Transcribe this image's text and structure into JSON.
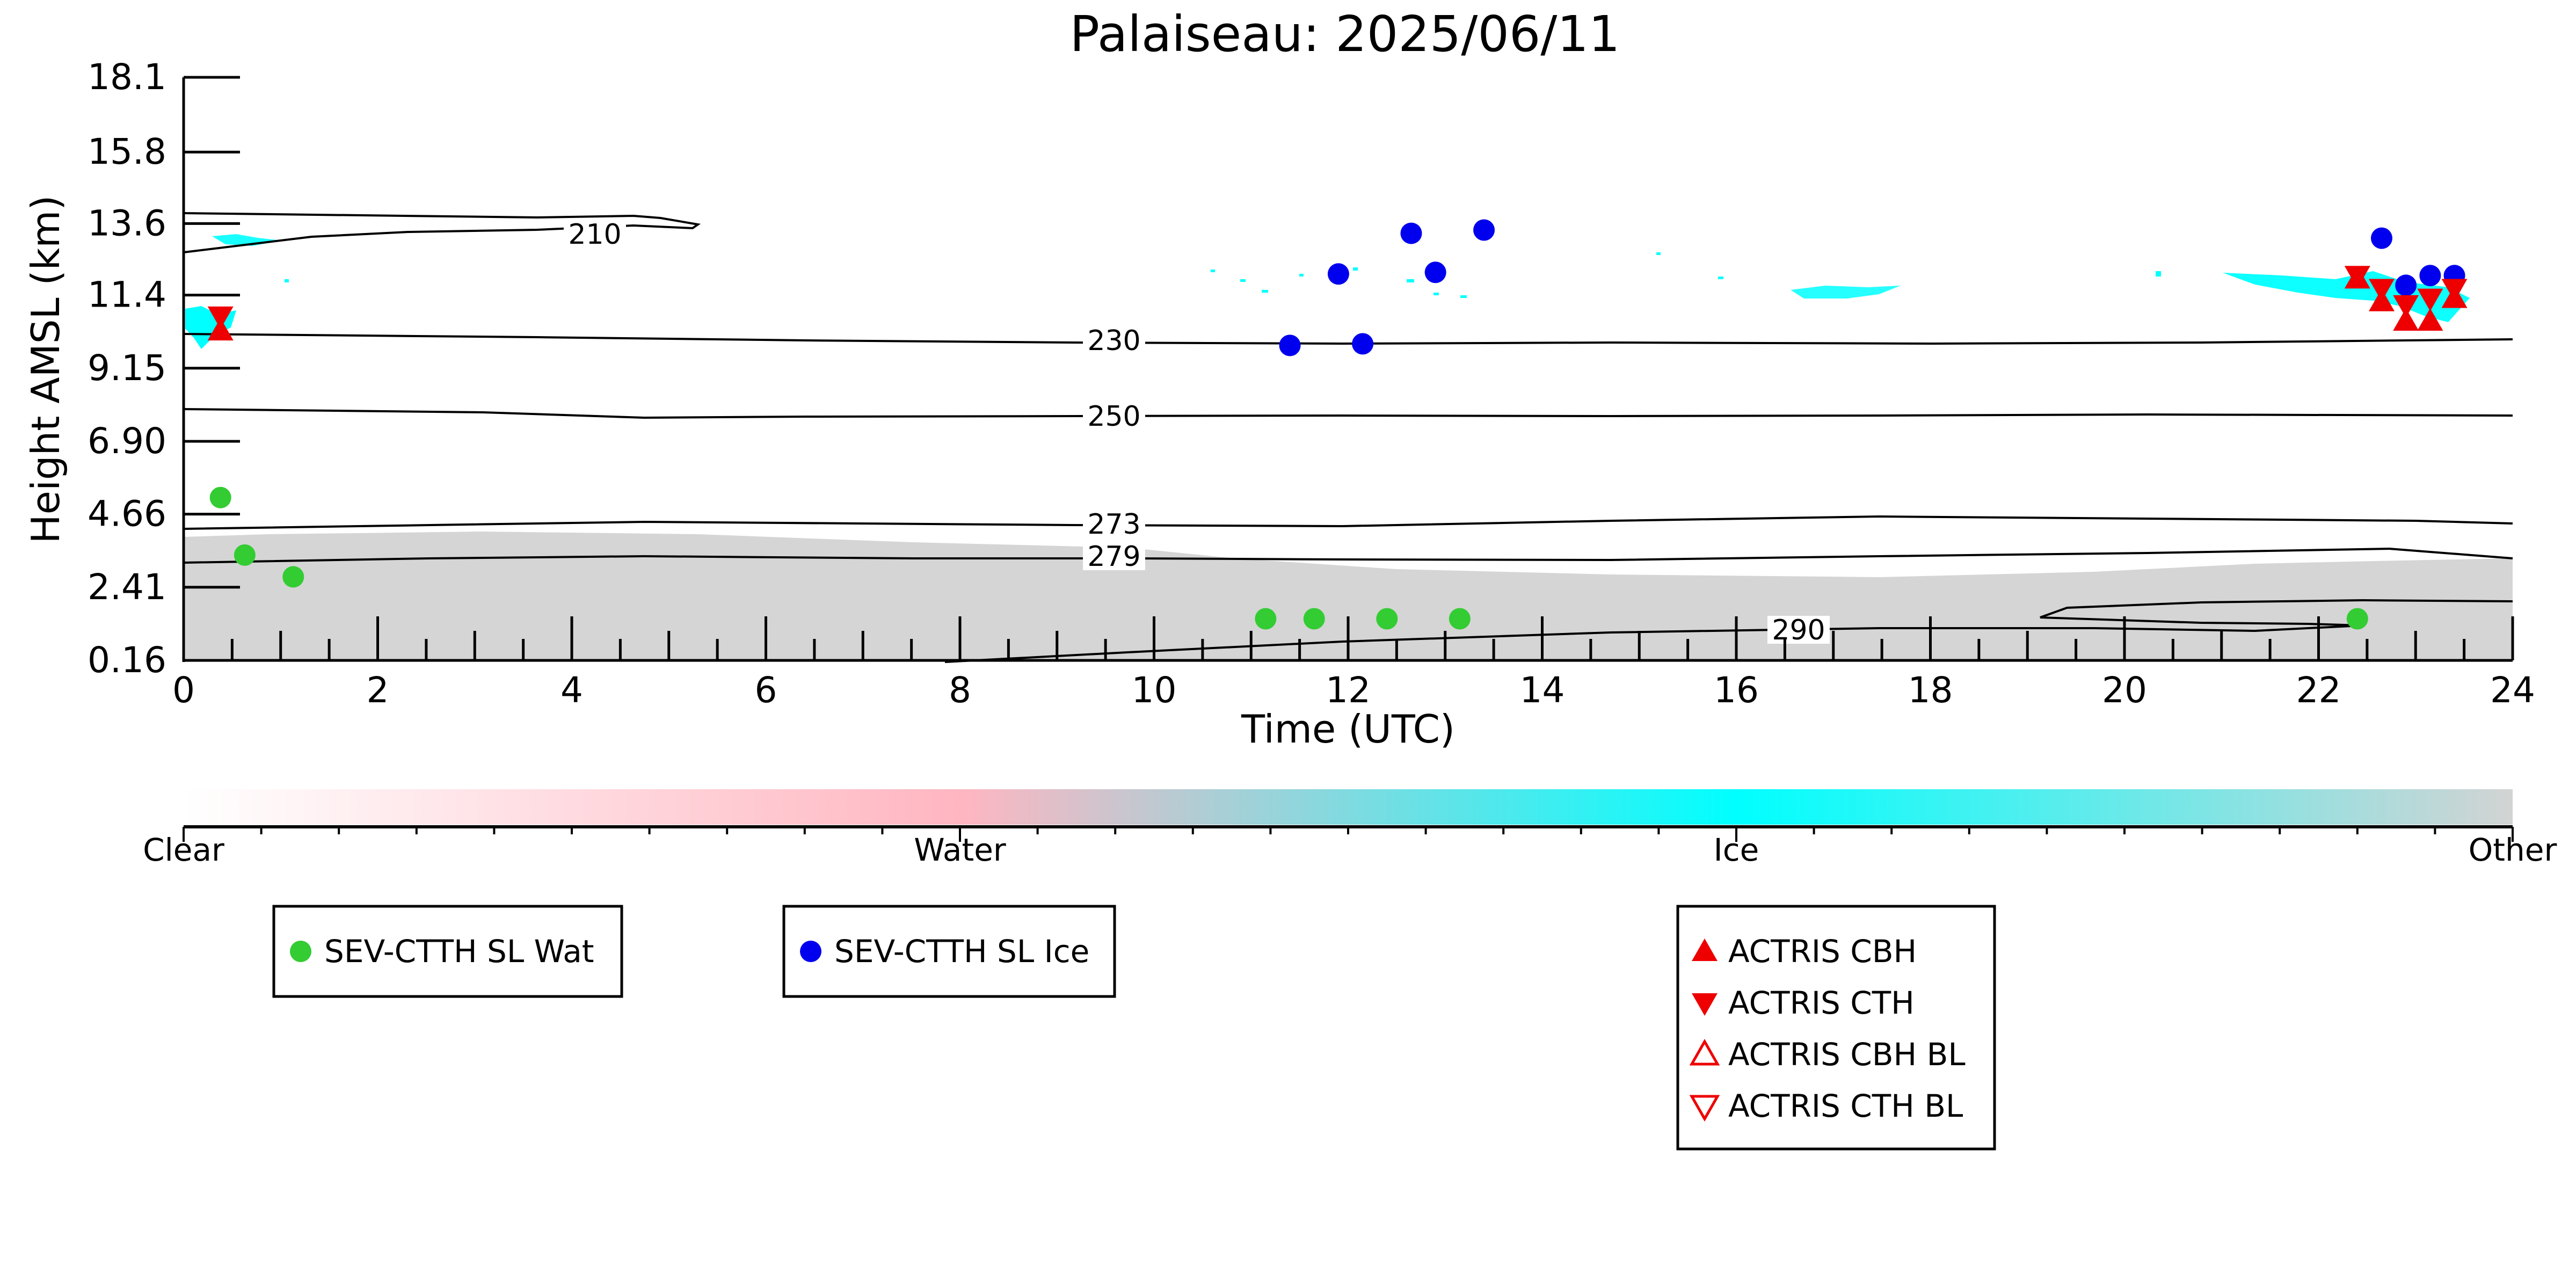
{
  "chart_data": {
    "type": "scatter",
    "title": "Palaiseau: 2025/06/11",
    "xlabel": "Time (UTC)",
    "ylabel": "Height AMSL (km)",
    "xlim": [
      0,
      24
    ],
    "ylim": [
      0.16,
      18.1
    ],
    "x_ticks": [
      0,
      2,
      4,
      6,
      8,
      10,
      12,
      14,
      16,
      18,
      20,
      22,
      24
    ],
    "y_ticks": [
      "0.16",
      "2.41",
      "4.66",
      "6.90",
      "9.15",
      "11.4",
      "13.6",
      "15.8",
      "18.1"
    ],
    "colorbar": {
      "labels": [
        "Clear",
        "Water",
        "Ice",
        "Other"
      ],
      "colors": [
        "#ffffff",
        "#ffb6c1",
        "#00ffff",
        "#d3d3d3"
      ]
    },
    "temperature_contours": [
      {
        "label": "210",
        "color": "#000000"
      },
      {
        "label": "230",
        "color": "#000000"
      },
      {
        "label": "250",
        "color": "#000000"
      },
      {
        "label": "273",
        "color": "#000000"
      },
      {
        "label": "279",
        "color": "#000000"
      },
      {
        "label": "290",
        "color": "#000000"
      }
    ],
    "series": [
      {
        "name": "SEV-CTTH SL Wat",
        "color": "#33cc33",
        "marker": "circle",
        "x": [
          0.38,
          0.63,
          1.13,
          11.15,
          11.65,
          12.4,
          13.15,
          22.4
        ],
        "y": [
          5.17,
          3.4,
          2.73,
          1.44,
          1.44,
          1.44,
          1.44,
          1.44
        ]
      },
      {
        "name": "SEV-CTTH SL Ice",
        "color": "#0000ee",
        "marker": "circle",
        "x": [
          11.4,
          11.9,
          12.15,
          12.65,
          12.9,
          13.4,
          22.65,
          22.9,
          23.15,
          23.4
        ],
        "y": [
          9.85,
          12.05,
          9.9,
          13.3,
          12.1,
          13.4,
          13.15,
          11.7,
          12.0,
          12.0
        ]
      },
      {
        "name": "ACTRIS CBH",
        "color": "#ee0000",
        "marker": "triangle-up",
        "x": [
          0.38,
          22.4,
          22.65,
          22.9,
          23.15,
          23.4
        ],
        "y": [
          10.3,
          11.9,
          11.2,
          10.6,
          10.6,
          11.3
        ]
      },
      {
        "name": "ACTRIS CTH",
        "color": "#ee0000",
        "marker": "triangle-down",
        "x": [
          0.38,
          22.4,
          22.65,
          22.9,
          23.15,
          23.4
        ],
        "y": [
          10.75,
          12.0,
          11.6,
          11.1,
          11.3,
          11.6
        ]
      },
      {
        "name": "ACTRIS CBH BL",
        "color": "#ee0000",
        "marker": "triangle-up-open",
        "x": [],
        "y": []
      },
      {
        "name": "ACTRIS CTH BL",
        "color": "#ee0000",
        "marker": "triangle-down-open",
        "x": [],
        "y": []
      }
    ]
  }
}
